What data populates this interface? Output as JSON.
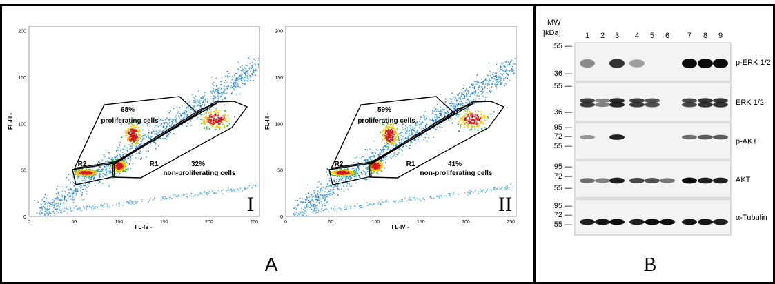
{
  "panel_a": {
    "label": "A",
    "x_axis_label": "FL-IV -",
    "y_axis_label": "FL-III -",
    "x_ticks": [
      "0",
      "50",
      "100",
      "150",
      "200",
      "250"
    ],
    "y_ticks": [
      "0",
      "50",
      "100",
      "150",
      "200"
    ],
    "plots": [
      {
        "numeral": "I",
        "proliferating_pct": "68%",
        "proliferating_label": "proliferating cells",
        "nonprolif_pct": "32%",
        "nonprolif_label": "non-proliferating cells",
        "gate_r1": "R1",
        "gate_r2": "R2"
      },
      {
        "numeral": "II",
        "proliferating_pct": "59%",
        "proliferating_label": "proliferating cells",
        "nonprolif_pct": "41%",
        "nonprolif_label": "non-proliferating cells",
        "gate_r1": "R1",
        "gate_r2": "R2"
      }
    ]
  },
  "panel_b": {
    "label": "B",
    "mw_label": "MW",
    "mw_unit": "[kDa]",
    "lanes": [
      "1",
      "2",
      "3",
      "4",
      "5",
      "6",
      "7",
      "8",
      "9"
    ],
    "blots": [
      {
        "name": "p-ERK 1/2",
        "markers": [
          "55 —",
          "36 —"
        ]
      },
      {
        "name": "ERK 1/2",
        "markers": [
          "55 —",
          "36 —"
        ]
      },
      {
        "name": "p-AKT",
        "markers": [
          "95 —",
          "72 —",
          "55 —"
        ]
      },
      {
        "name": "AKT",
        "markers": [
          "95 —",
          "72 —",
          "55 —"
        ]
      },
      {
        "name": "α-Tubulin",
        "markers": [
          "95 —",
          "72 —",
          "55 —"
        ]
      }
    ]
  }
}
